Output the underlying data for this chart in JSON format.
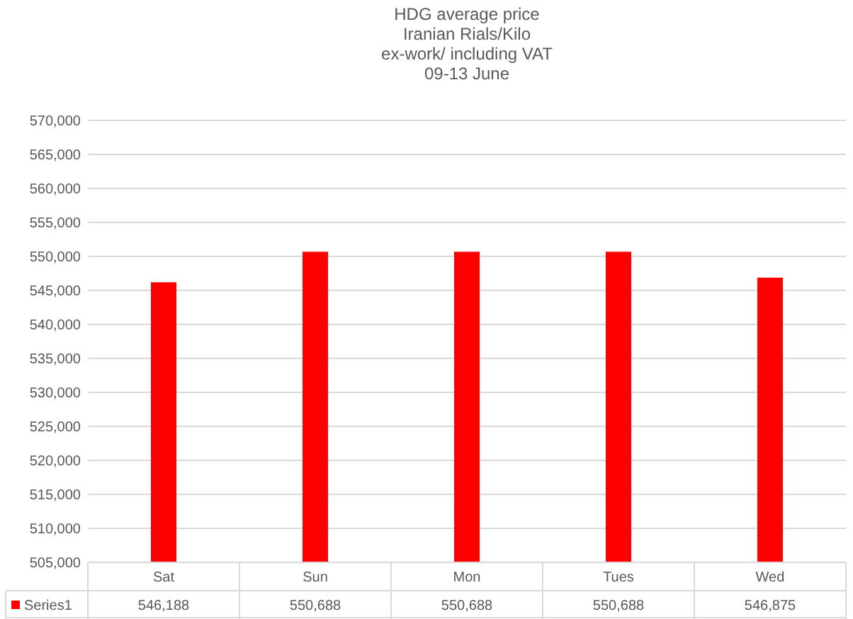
{
  "chart_data": {
    "type": "bar",
    "title": "HDG average  price\nIranian Rials/Kilo\nex-work/ including VAT\n09-13 June",
    "categories": [
      "Sat",
      "Sun",
      "Mon",
      "Tues",
      "Wed"
    ],
    "series": [
      {
        "name": "Series1",
        "color": "#ff0000",
        "values": [
          546188,
          550688,
          550688,
          550688,
          546875
        ]
      }
    ],
    "ylim": [
      505000,
      570000
    ],
    "yticks": [
      {
        "value": 505000,
        "label": "505,000"
      },
      {
        "value": 510000,
        "label": "510,000"
      },
      {
        "value": 515000,
        "label": "515,000"
      },
      {
        "value": 520000,
        "label": "520,000"
      },
      {
        "value": 525000,
        "label": "525,000"
      },
      {
        "value": 530000,
        "label": "530,000"
      },
      {
        "value": 535000,
        "label": "535,000"
      },
      {
        "value": 540000,
        "label": "540,000"
      },
      {
        "value": 545000,
        "label": "545,000"
      },
      {
        "value": 550000,
        "label": "550,000"
      },
      {
        "value": 555000,
        "label": "555,000"
      },
      {
        "value": 560000,
        "label": "560,000"
      },
      {
        "value": 565000,
        "label": "565,000"
      },
      {
        "value": 570000,
        "label": "570,000"
      }
    ],
    "value_labels": [
      "546,188",
      "550,688",
      "550,688",
      "550,688",
      "546,875"
    ],
    "grid": true,
    "legend": "bottom left"
  }
}
